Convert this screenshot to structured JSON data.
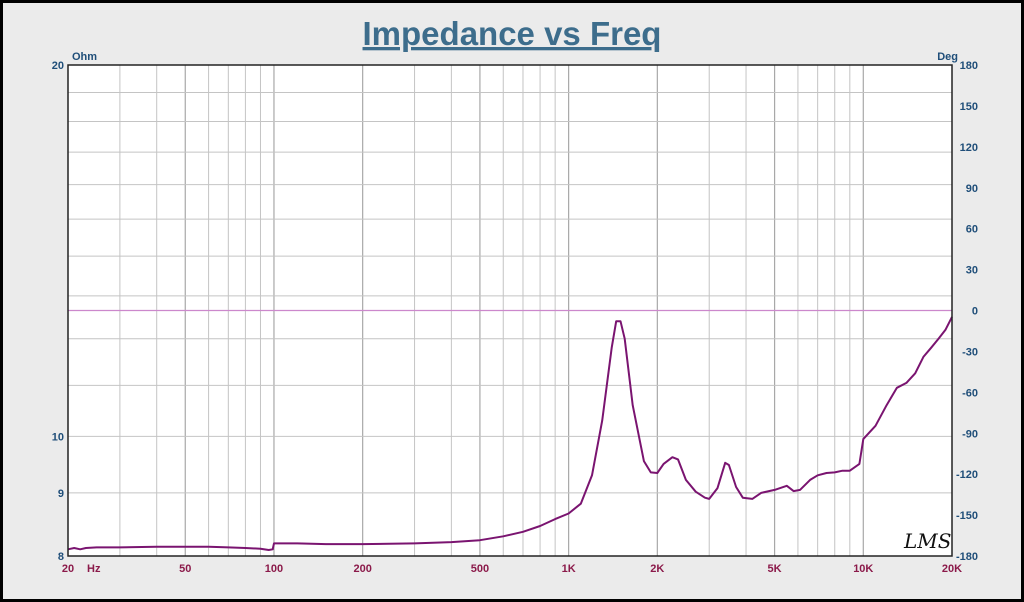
{
  "chart_data": {
    "type": "line",
    "title": "Impedance vs Freq",
    "xlabel": "Hz",
    "x_scale": "log",
    "xlim": [
      20,
      20000
    ],
    "x_ticks": [
      {
        "value": 20,
        "label": "20"
      },
      {
        "value": 50,
        "label": "50"
      },
      {
        "value": 100,
        "label": "100"
      },
      {
        "value": 200,
        "label": "200"
      },
      {
        "value": 500,
        "label": "500"
      },
      {
        "value": 1000,
        "label": "1K"
      },
      {
        "value": 2000,
        "label": "2K"
      },
      {
        "value": 5000,
        "label": "5K"
      },
      {
        "value": 10000,
        "label": "10K"
      },
      {
        "value": 20000,
        "label": "20K"
      }
    ],
    "ylabel_left": "Ohm",
    "y_left_scale": "log",
    "y_left_lim": [
      8,
      20
    ],
    "y_left_ticks": [
      {
        "value": 8,
        "label": "8"
      },
      {
        "value": 9,
        "label": "9"
      },
      {
        "value": 10,
        "label": "10"
      },
      {
        "value": 20,
        "label": "20"
      }
    ],
    "ylabel_right": "Deg",
    "y_right_lim": [
      -180,
      180
    ],
    "y_right_ticks": [
      180,
      150,
      120,
      90,
      60,
      30,
      0,
      -30,
      -60,
      -90,
      -120,
      -150,
      -180
    ],
    "reference_line": {
      "axis": "right",
      "value": 0,
      "color": "#cc88cc"
    },
    "grid": true,
    "watermark": "LMS",
    "series": [
      {
        "axis": "left",
        "color": "#7a1470",
        "points": [
          [
            20,
            8.1
          ],
          [
            21,
            8.12
          ],
          [
            22,
            8.1
          ],
          [
            23,
            8.12
          ],
          [
            25,
            8.13
          ],
          [
            30,
            8.13
          ],
          [
            40,
            8.14
          ],
          [
            50,
            8.14
          ],
          [
            60,
            8.14
          ],
          [
            70,
            8.13
          ],
          [
            80,
            8.12
          ],
          [
            90,
            8.11
          ],
          [
            96,
            8.09
          ],
          [
            99,
            8.1
          ],
          [
            100,
            8.19
          ],
          [
            120,
            8.19
          ],
          [
            150,
            8.18
          ],
          [
            200,
            8.18
          ],
          [
            300,
            8.19
          ],
          [
            400,
            8.21
          ],
          [
            500,
            8.24
          ],
          [
            600,
            8.3
          ],
          [
            700,
            8.37
          ],
          [
            800,
            8.46
          ],
          [
            900,
            8.57
          ],
          [
            1000,
            8.66
          ],
          [
            1100,
            8.82
          ],
          [
            1200,
            9.3
          ],
          [
            1300,
            10.3
          ],
          [
            1400,
            11.8
          ],
          [
            1450,
            12.4
          ],
          [
            1500,
            12.4
          ],
          [
            1550,
            12.0
          ],
          [
            1650,
            10.6
          ],
          [
            1800,
            9.55
          ],
          [
            1900,
            9.35
          ],
          [
            2000,
            9.34
          ],
          [
            2100,
            9.5
          ],
          [
            2250,
            9.62
          ],
          [
            2350,
            9.58
          ],
          [
            2500,
            9.22
          ],
          [
            2700,
            9.02
          ],
          [
            2900,
            8.92
          ],
          [
            3000,
            8.9
          ],
          [
            3200,
            9.08
          ],
          [
            3400,
            9.52
          ],
          [
            3500,
            9.48
          ],
          [
            3700,
            9.1
          ],
          [
            3900,
            8.92
          ],
          [
            4200,
            8.9
          ],
          [
            4500,
            9.0
          ],
          [
            5000,
            9.05
          ],
          [
            5500,
            9.12
          ],
          [
            5800,
            9.03
          ],
          [
            6100,
            9.05
          ],
          [
            6600,
            9.22
          ],
          [
            7000,
            9.3
          ],
          [
            7500,
            9.34
          ],
          [
            8000,
            9.35
          ],
          [
            8500,
            9.38
          ],
          [
            9000,
            9.38
          ],
          [
            9700,
            9.5
          ],
          [
            10000,
            9.95
          ],
          [
            11000,
            10.2
          ],
          [
            12000,
            10.6
          ],
          [
            13000,
            10.95
          ],
          [
            14000,
            11.05
          ],
          [
            15000,
            11.25
          ],
          [
            16000,
            11.6
          ],
          [
            17000,
            11.8
          ],
          [
            18000,
            12.0
          ],
          [
            19000,
            12.2
          ],
          [
            20000,
            12.5
          ]
        ]
      }
    ]
  }
}
